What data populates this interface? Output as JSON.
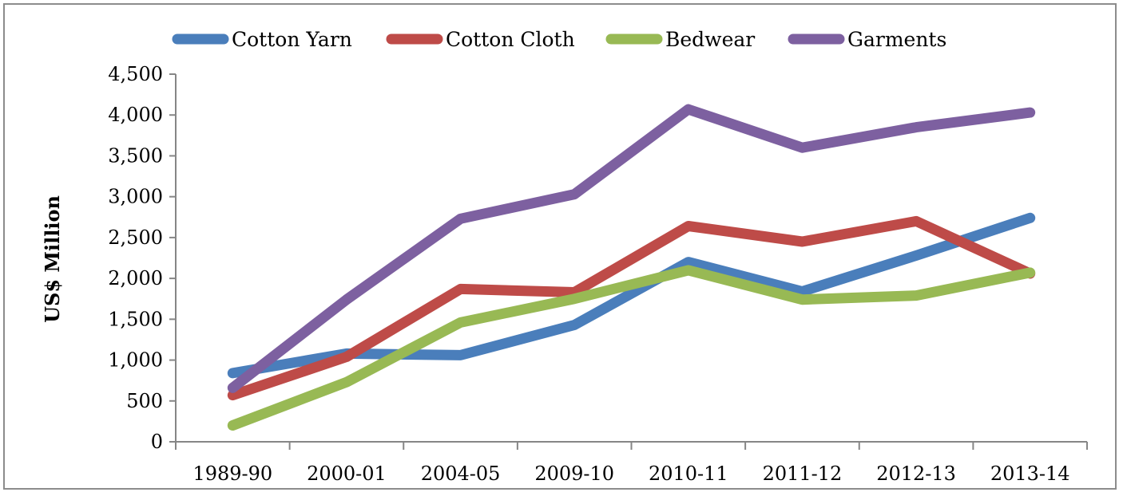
{
  "chart_data": {
    "type": "line",
    "title": "",
    "xlabel": "",
    "ylabel": "US$ Million",
    "ylim": [
      0,
      4500
    ],
    "yticks": [
      0,
      500,
      1000,
      1500,
      2000,
      2500,
      3000,
      3500,
      4000,
      4500
    ],
    "ytick_labels": [
      "0",
      "500",
      "1,000",
      "1,500",
      "2,000",
      "2,500",
      "3,000",
      "3,500",
      "4,000",
      "4,500"
    ],
    "categories": [
      "1989-90",
      "2000-01",
      "2004-05",
      "2009-10",
      "2010-11",
      "2011-12",
      "2012-13",
      "2013-14"
    ],
    "legend_position": "top",
    "grid": false,
    "series": [
      {
        "name": "Cotton Yarn",
        "color": "#4a7ebb",
        "values": [
          840,
          1080,
          1060,
          1430,
          2200,
          1840,
          2280,
          2740
        ]
      },
      {
        "name": "Cotton Cloth",
        "color": "#be4b48",
        "values": [
          570,
          1040,
          1870,
          1830,
          2640,
          2450,
          2700,
          2060
        ]
      },
      {
        "name": "Bedwear",
        "color": "#98b954",
        "values": [
          200,
          730,
          1460,
          1750,
          2100,
          1740,
          1790,
          2070
        ]
      },
      {
        "name": "Garments",
        "color": "#7d60a0",
        "values": [
          660,
          1740,
          2730,
          3030,
          4070,
          3600,
          3850,
          4030
        ]
      }
    ]
  }
}
